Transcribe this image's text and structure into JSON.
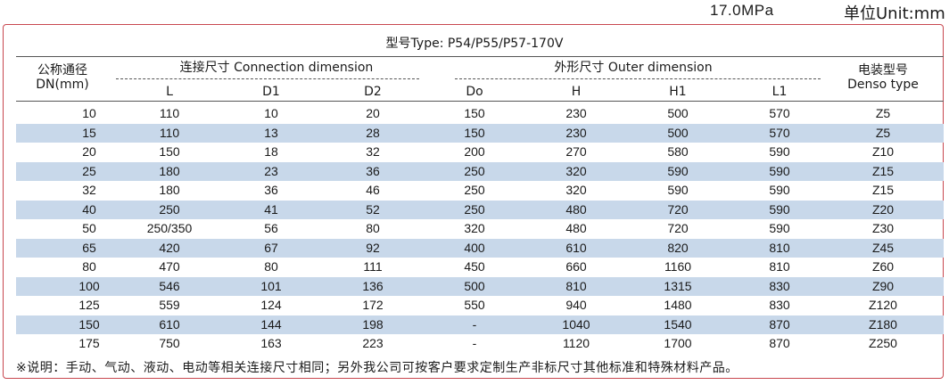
{
  "pressure": "17.0MPa",
  "unit_label": "单位Unit:mm",
  "type_line": "型号Type: P54/P55/P57-170V",
  "headers": {
    "dn_cn": "公称通径",
    "dn_en": "DN(mm)",
    "connection": "连接尺寸 Connection dimension",
    "outer": "外形尺寸 Outer dimension",
    "denso_cn": "电装型号",
    "denso_en": "Denso type"
  },
  "columns": [
    "L",
    "D1",
    "D2",
    "Do",
    "H",
    "H1",
    "L1"
  ],
  "table": [
    [
      "10",
      "110",
      "10",
      "20",
      "150",
      "230",
      "500",
      "570",
      "Z5"
    ],
    [
      "15",
      "110",
      "13",
      "28",
      "150",
      "230",
      "500",
      "570",
      "Z5"
    ],
    [
      "20",
      "150",
      "18",
      "32",
      "200",
      "270",
      "580",
      "590",
      "Z10"
    ],
    [
      "25",
      "180",
      "23",
      "36",
      "250",
      "320",
      "590",
      "590",
      "Z15"
    ],
    [
      "32",
      "180",
      "36",
      "46",
      "250",
      "320",
      "590",
      "590",
      "Z15"
    ],
    [
      "40",
      "250",
      "41",
      "52",
      "250",
      "480",
      "720",
      "590",
      "Z20"
    ],
    [
      "50",
      "250/350",
      "56",
      "80",
      "320",
      "480",
      "720",
      "590",
      "Z30"
    ],
    [
      "65",
      "420",
      "67",
      "92",
      "400",
      "610",
      "820",
      "810",
      "Z45"
    ],
    [
      "80",
      "470",
      "80",
      "111",
      "450",
      "660",
      "1160",
      "810",
      "Z60"
    ],
    [
      "100",
      "546",
      "101",
      "136",
      "500",
      "810",
      "1315",
      "830",
      "Z90"
    ],
    [
      "125",
      "559",
      "124",
      "172",
      "550",
      "940",
      "1480",
      "830",
      "Z120"
    ],
    [
      "150",
      "610",
      "144",
      "198",
      "-",
      "1040",
      "1540",
      "870",
      "Z180"
    ],
    [
      "175",
      "750",
      "163",
      "223",
      "-",
      "1120",
      "1700",
      "870",
      "Z250"
    ]
  ],
  "note": "※说明：手动、气动、液动、电动等相关连接尺寸相同；另外我公司可按客户要求定制生产非标尺寸其他标准和特殊材料产品。"
}
